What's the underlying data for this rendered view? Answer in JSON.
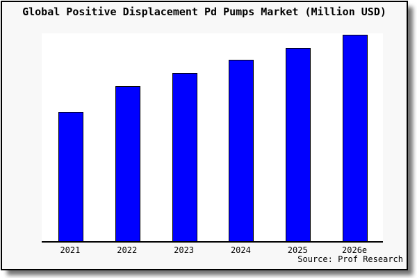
{
  "header": {
    "title": "Global Positive Displacement Pd Pumps Market (Million USD)"
  },
  "footer": {
    "source_label": "Source: Prof Research"
  },
  "colors": {
    "bar_fill": "#0000ff",
    "bar_border": "#000000",
    "card_background": "#f8f8f8",
    "plot_background": "#ffffff",
    "text": "#000000"
  },
  "chart_data": {
    "type": "bar",
    "title": "Global Positive Displacement Pd Pumps Market (Million USD)",
    "categories": [
      "2021",
      "2022",
      "2023",
      "2024",
      "2025",
      "2026e"
    ],
    "values": [
      62.5,
      74.9,
      81.3,
      87.7,
      93.5,
      100
    ],
    "values_note": "No y-axis ticks or labels are shown in the chart; values are relative bar heights normalized so 2026e = 100",
    "xlabel": "",
    "ylabel": "",
    "ylim": [
      0,
      101
    ],
    "grid": false,
    "legend": false,
    "bar_color": "#0000ff",
    "annotation": "Source: Prof Research"
  }
}
